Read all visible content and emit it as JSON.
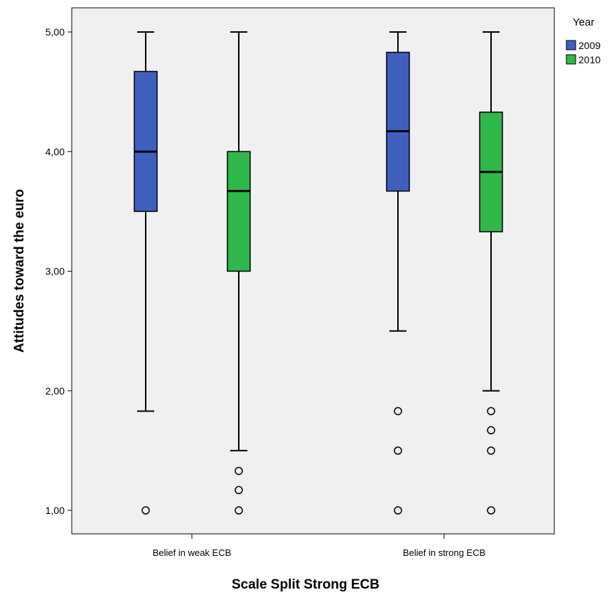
{
  "chart_data": {
    "type": "boxplot",
    "xlabel": "Scale Split Strong ECB",
    "ylabel": "Attitudes toward the euro",
    "ylim": [
      1.0,
      5.0
    ],
    "yticks": [
      "1,00",
      "2,00",
      "3,00",
      "4,00",
      "5,00"
    ],
    "ytick_values": [
      1,
      2,
      3,
      4,
      5
    ],
    "grid": false,
    "categories": [
      "Belief in weak ECB",
      "Belief in strong ECB"
    ],
    "legend": {
      "title": "Year",
      "placement": "top-right"
    },
    "series": [
      {
        "name": "2009",
        "color": "#3f5fbf",
        "boxes": [
          {
            "category": "Belief in weak ECB",
            "whisker_low": 1.83,
            "q1": 3.5,
            "median": 4.0,
            "q3": 4.67,
            "whisker_high": 5.0,
            "outliers": [
              1.0
            ]
          },
          {
            "category": "Belief in strong ECB",
            "whisker_low": 2.5,
            "q1": 3.67,
            "median": 4.17,
            "q3": 4.83,
            "whisker_high": 5.0,
            "outliers": [
              1.83,
              1.5,
              1.0
            ]
          }
        ]
      },
      {
        "name": "2010",
        "color": "#2eb84a",
        "boxes": [
          {
            "category": "Belief in weak ECB",
            "whisker_low": 1.5,
            "q1": 3.0,
            "median": 3.67,
            "q3": 4.0,
            "whisker_high": 5.0,
            "outliers": [
              1.33,
              1.17,
              1.0
            ]
          },
          {
            "category": "Belief in strong ECB",
            "whisker_low": 2.0,
            "q1": 3.33,
            "median": 3.83,
            "q3": 4.33,
            "whisker_high": 5.0,
            "outliers": [
              1.83,
              1.67,
              1.5,
              1.0
            ]
          }
        ]
      }
    ]
  }
}
